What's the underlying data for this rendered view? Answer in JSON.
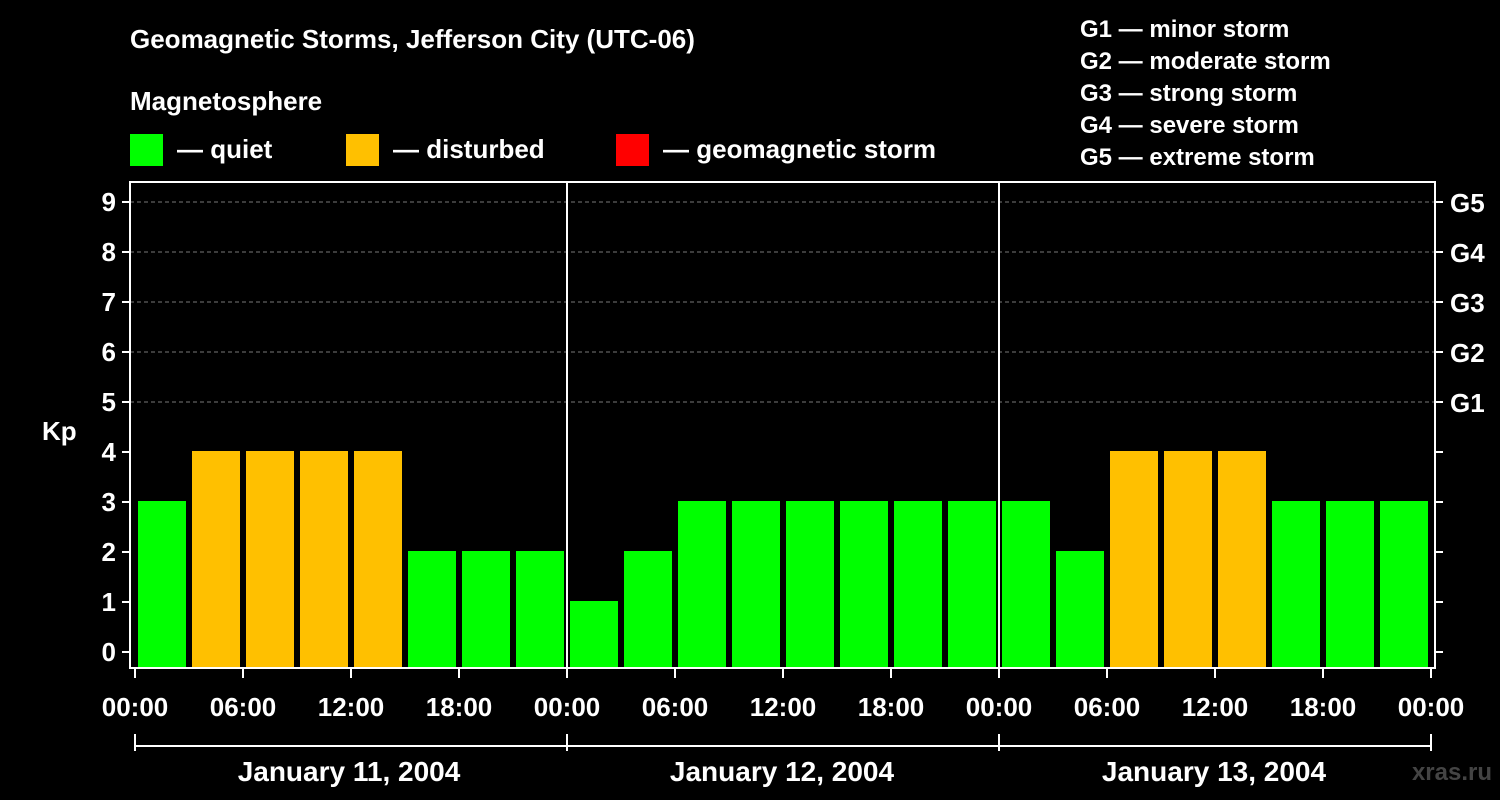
{
  "chart_data": {
    "type": "bar",
    "title": "Geomagnetic Storms, Jefferson City (UTC-06)",
    "legend_title": "Magnetosphere",
    "legend": [
      {
        "label": "— quiet",
        "color": "#00ff00"
      },
      {
        "label": "— disturbed",
        "color": "#ffc000"
      },
      {
        "label": "— geomagnetic storm",
        "color": "#ff0000"
      }
    ],
    "storm_scale": [
      "G1 — minor storm",
      "G2 — moderate storm",
      "G3 — strong storm",
      "G4 — severe storm",
      "G5 — extreme storm"
    ],
    "ylabel": "Kp",
    "ylim": [
      0,
      9
    ],
    "y_ticks": [
      "0",
      "1",
      "2",
      "3",
      "4",
      "5",
      "6",
      "7",
      "8",
      "9"
    ],
    "right_ticks": [
      {
        "value": 5,
        "label": "G1"
      },
      {
        "value": 6,
        "label": "G2"
      },
      {
        "value": 7,
        "label": "G3"
      },
      {
        "value": 8,
        "label": "G4"
      },
      {
        "value": 9,
        "label": "G5"
      }
    ],
    "x_ticks": [
      "00:00",
      "06:00",
      "12:00",
      "18:00",
      "00:00",
      "06:00",
      "12:00",
      "18:00",
      "00:00",
      "06:00",
      "12:00",
      "18:00",
      "00:00"
    ],
    "days": [
      "January 11, 2004",
      "January 12, 2004",
      "January 13, 2004"
    ],
    "interval_hours": 3,
    "values": [
      3,
      4,
      4,
      4,
      4,
      2,
      2,
      2,
      1,
      2,
      3,
      3,
      3,
      3,
      3,
      3,
      3,
      2,
      4,
      4,
      4,
      3,
      3,
      3
    ],
    "status": [
      "quiet",
      "disturbed",
      "disturbed",
      "disturbed",
      "disturbed",
      "quiet",
      "quiet",
      "quiet",
      "quiet",
      "quiet",
      "quiet",
      "quiet",
      "quiet",
      "quiet",
      "quiet",
      "quiet",
      "quiet",
      "quiet",
      "disturbed",
      "disturbed",
      "disturbed",
      "quiet",
      "quiet",
      "quiet"
    ],
    "colors": {
      "quiet": "#00ff00",
      "disturbed": "#ffc000",
      "storm": "#ff0000"
    },
    "grid": "dashed at storm levels",
    "watermark": "xras.ru"
  }
}
